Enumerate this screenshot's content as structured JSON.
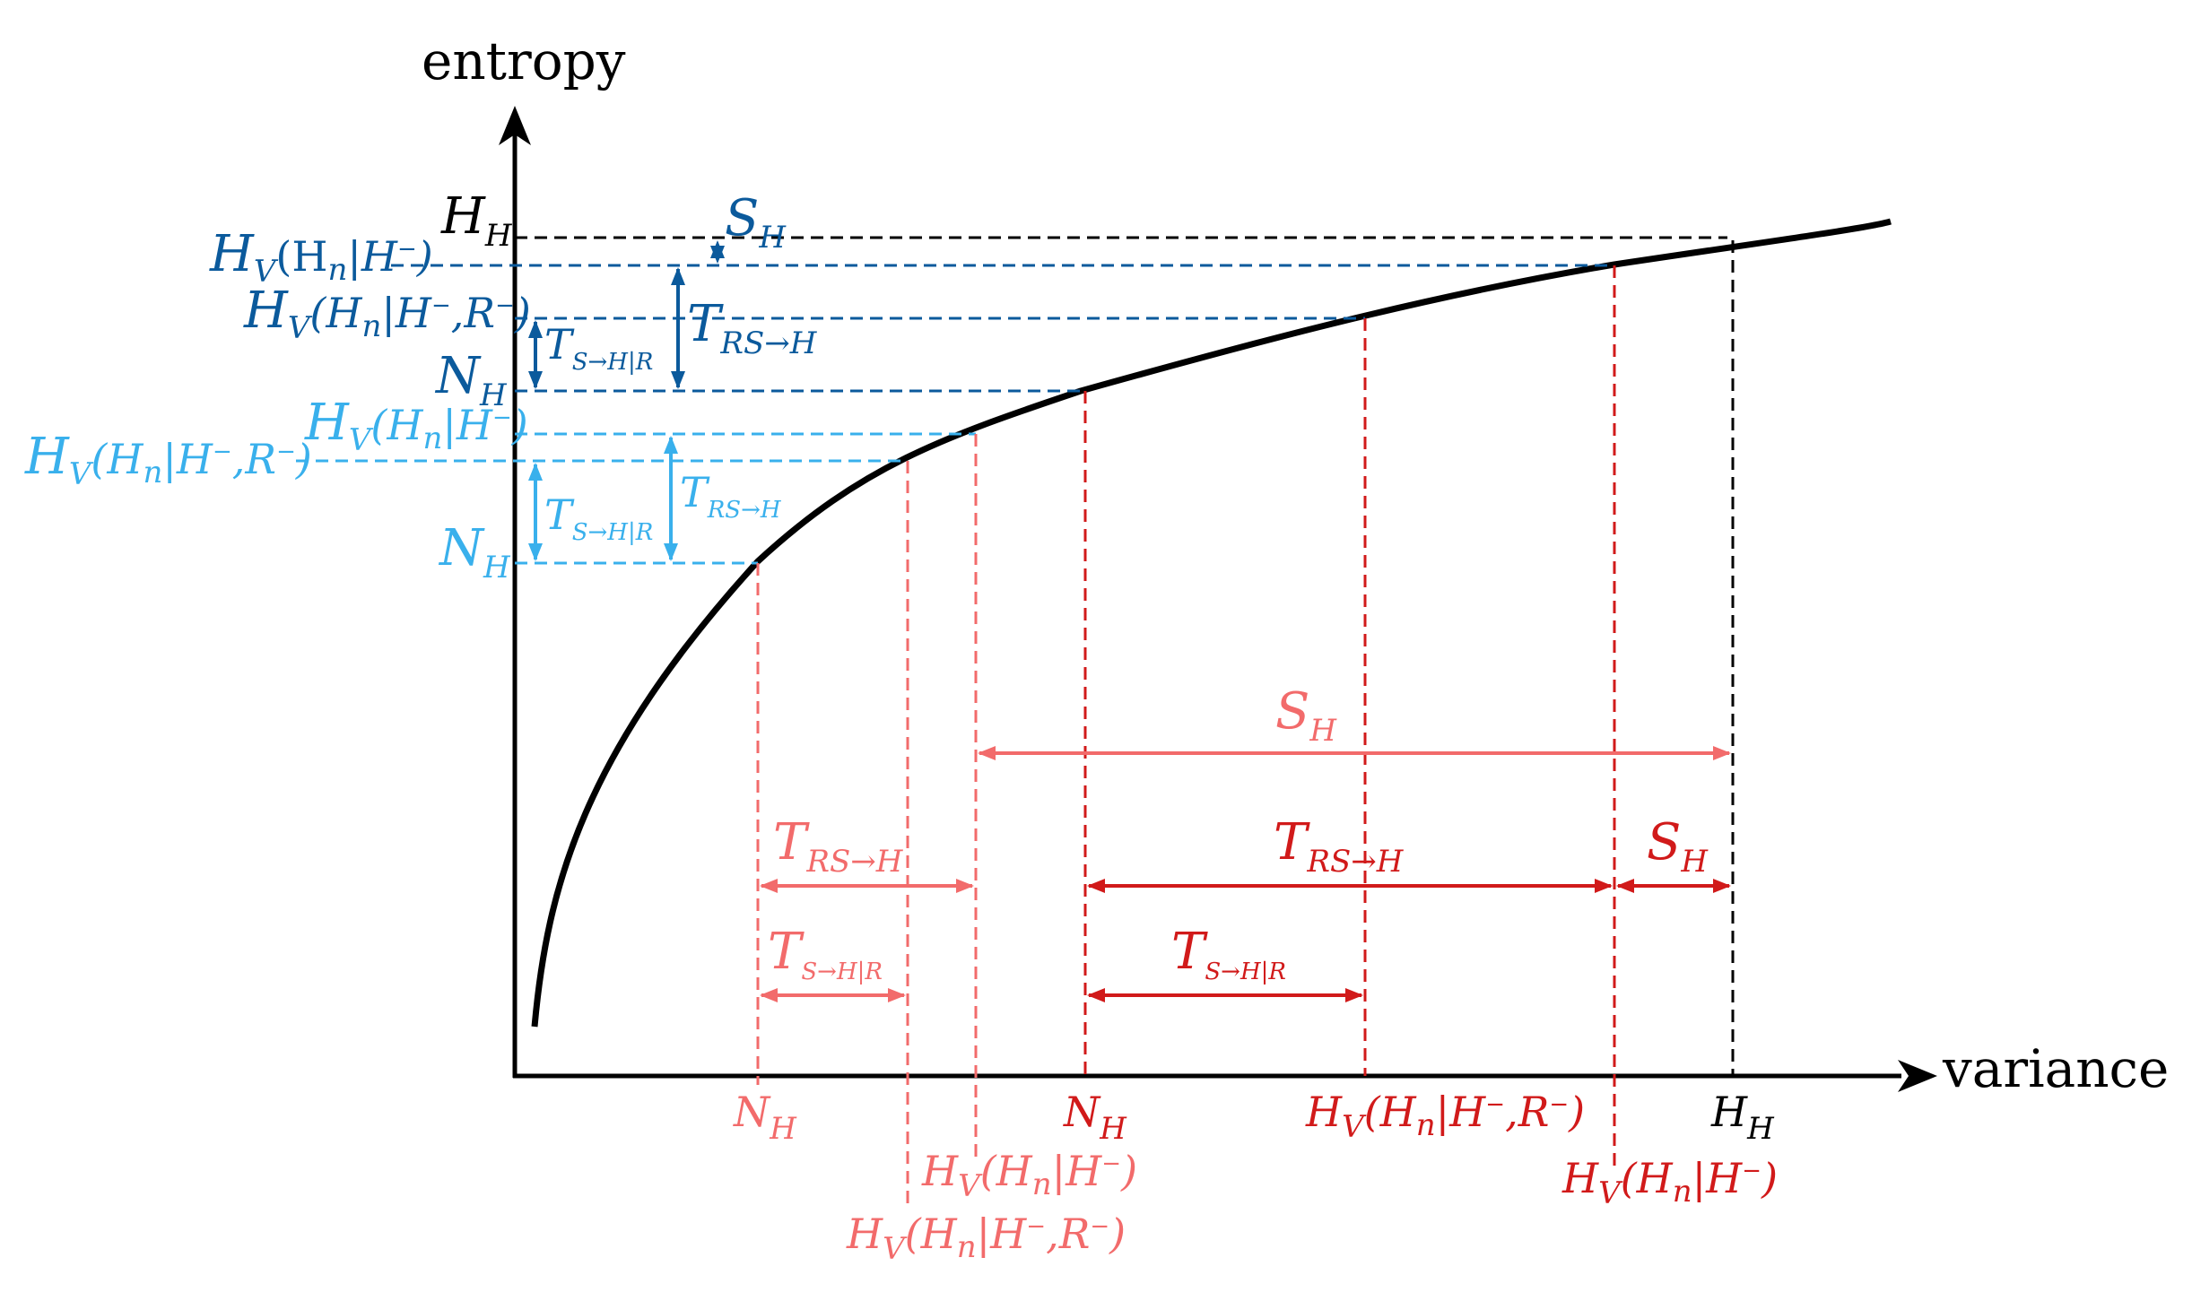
{
  "axes": {
    "x_label": "variance",
    "y_label": "entropy"
  },
  "colors": {
    "black": "#000000",
    "dark_blue": "#0b5a9c",
    "light_blue": "#39b0ec",
    "dark_red": "#d11a1a",
    "light_red": "#f26b6b"
  },
  "labels": {
    "H": "H",
    "N": "N",
    "S": "S",
    "T": "T",
    "sub_H": "H",
    "sub_V": "V",
    "sub_n": "n",
    "sub_RS_to_H": "RS→H",
    "sub_S_to_H_given_R": "S→H|R",
    "cond_Hn_open": "(H",
    "cond_bar_H": "|H",
    "cond_minus": "−",
    "cond_comma_R": ",R",
    "close_paren": ")"
  }
}
